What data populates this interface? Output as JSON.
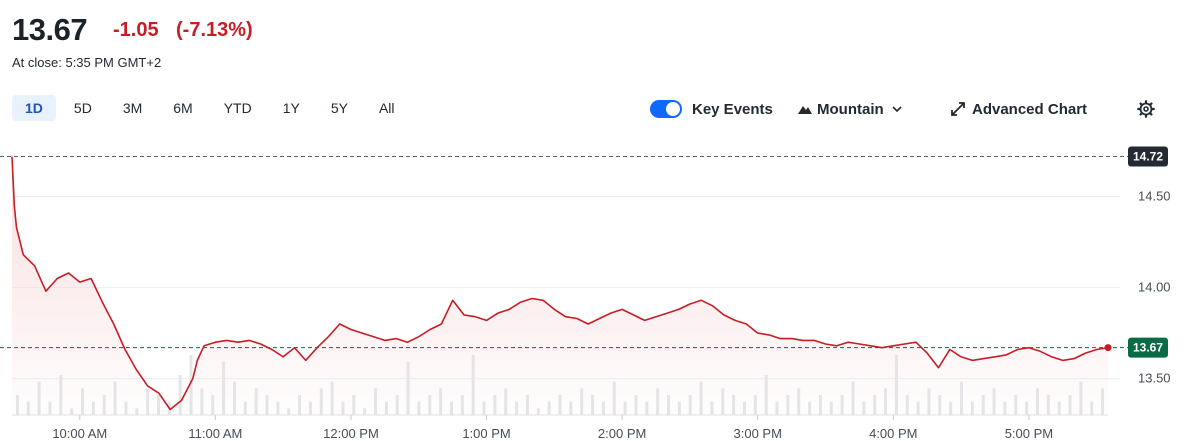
{
  "quote": {
    "price": "13.67",
    "change": "-1.05",
    "change_pct": "(-7.13%)",
    "close_label": "At close: 5:35 PM GMT+2"
  },
  "ranges": [
    "1D",
    "5D",
    "3M",
    "6M",
    "YTD",
    "1Y",
    "5Y",
    "All"
  ],
  "active_range": "1D",
  "toolbar": {
    "key_events_label": "Key Events",
    "key_events_on": true,
    "chart_type_label": "Mountain",
    "advanced_label": "Advanced Chart",
    "icons": [
      "mountain-icon",
      "chevron-down-icon",
      "expand-icon",
      "gear-icon"
    ]
  },
  "colors": {
    "line": "#c81d25",
    "fill": "#f9d9db",
    "prev_close_tag": "#232a31",
    "last_price_tag": "#0b6b47",
    "toggle": "#0f69ff"
  },
  "chart_data": {
    "type": "area",
    "title": "",
    "xlabel": "",
    "ylabel": "",
    "x_ticks": [
      "10:00 AM",
      "11:00 AM",
      "12:00 PM",
      "1:00 PM",
      "2:00 PM",
      "3:00 PM",
      "4:00 PM",
      "5:00 PM"
    ],
    "y_ticks": [
      "14.50",
      "14.00",
      "13.50"
    ],
    "ylim": [
      13.3,
      14.8
    ],
    "xlim": [
      "9:30 AM",
      "5:35 PM"
    ],
    "grid": true,
    "reference_lines": [
      {
        "label": "14.72",
        "value": 14.72,
        "style": "dashed"
      },
      {
        "label": "13.67",
        "value": 13.67,
        "style": "dashed"
      }
    ],
    "series": [
      {
        "x": [
          "9:30 AM",
          "9:31 AM",
          "9:32 AM",
          "9:35 AM",
          "9:40 AM",
          "9:45 AM",
          "9:50 AM",
          "9:55 AM",
          "10:00 AM",
          "10:05 AM",
          "10:10 AM",
          "10:15 AM",
          "10:20 AM",
          "10:25 AM",
          "10:30 AM",
          "10:35 AM",
          "10:40 AM",
          "10:45 AM",
          "10:50 AM",
          "10:52 AM",
          "10:55 AM",
          "11:00 AM",
          "11:05 AM",
          "11:10 AM",
          "11:15 AM",
          "11:20 AM",
          "11:25 AM",
          "11:30 AM",
          "11:35 AM",
          "11:40 AM",
          "11:45 AM",
          "11:50 AM",
          "11:55 AM",
          "12:00 PM",
          "12:05 PM",
          "12:10 PM",
          "12:15 PM",
          "12:20 PM",
          "12:25 PM",
          "12:30 PM",
          "12:35 PM",
          "12:40 PM",
          "12:45 PM",
          "12:50 PM",
          "12:55 PM",
          "1:00 PM",
          "1:05 PM",
          "1:10 PM",
          "1:15 PM",
          "1:20 PM",
          "1:25 PM",
          "1:30 PM",
          "1:35 PM",
          "1:40 PM",
          "1:45 PM",
          "1:50 PM",
          "1:55 PM",
          "2:00 PM",
          "2:05 PM",
          "2:10 PM",
          "2:15 PM",
          "2:20 PM",
          "2:25 PM",
          "2:30 PM",
          "2:35 PM",
          "2:40 PM",
          "2:45 PM",
          "2:50 PM",
          "2:55 PM",
          "3:00 PM",
          "3:05 PM",
          "3:10 PM",
          "3:15 PM",
          "3:20 PM",
          "3:25 PM",
          "3:30 PM",
          "3:35 PM",
          "3:40 PM",
          "3:45 PM",
          "3:50 PM",
          "3:55 PM",
          "4:00 PM",
          "4:05 PM",
          "4:10 PM",
          "4:15 PM",
          "4:20 PM",
          "4:25 PM",
          "4:30 PM",
          "4:35 PM",
          "4:40 PM",
          "4:45 PM",
          "4:50 PM",
          "4:55 PM",
          "5:00 PM",
          "5:05 PM",
          "5:10 PM",
          "5:15 PM",
          "5:20 PM",
          "5:25 PM",
          "5:30 PM",
          "5:35 PM"
        ],
        "values": [
          14.72,
          14.45,
          14.33,
          14.18,
          14.12,
          13.98,
          14.05,
          14.08,
          14.03,
          14.05,
          13.92,
          13.8,
          13.66,
          13.55,
          13.46,
          13.42,
          13.33,
          13.38,
          13.5,
          13.6,
          13.68,
          13.7,
          13.71,
          13.7,
          13.71,
          13.69,
          13.66,
          13.62,
          13.67,
          13.6,
          13.67,
          13.73,
          13.8,
          13.77,
          13.75,
          13.73,
          13.71,
          13.72,
          13.7,
          13.73,
          13.77,
          13.8,
          13.93,
          13.85,
          13.84,
          13.82,
          13.86,
          13.88,
          13.92,
          13.94,
          13.93,
          13.88,
          13.84,
          13.83,
          13.8,
          13.83,
          13.86,
          13.88,
          13.85,
          13.82,
          13.84,
          13.86,
          13.88,
          13.91,
          13.93,
          13.9,
          13.85,
          13.82,
          13.8,
          13.75,
          13.74,
          13.72,
          13.72,
          13.71,
          13.71,
          13.69,
          13.68,
          13.7,
          13.69,
          13.68,
          13.67,
          13.68,
          13.69,
          13.7,
          13.64,
          13.56,
          13.66,
          13.62,
          13.6,
          13.61,
          13.62,
          13.63,
          13.66,
          13.67,
          13.65,
          13.62,
          13.6,
          13.61,
          13.64,
          13.66,
          13.67
        ]
      }
    ],
    "volume": [
      3,
      2,
      5,
      2,
      6,
      1,
      4,
      2,
      3,
      5,
      2,
      1,
      4,
      3,
      2,
      6,
      9,
      4,
      3,
      8,
      5,
      2,
      4,
      3,
      2,
      1,
      3,
      2,
      4,
      5,
      2,
      3,
      1,
      4,
      2,
      3,
      8,
      2,
      3,
      4,
      2,
      3,
      9,
      2,
      3,
      4,
      2,
      3,
      1,
      2,
      3,
      2,
      4,
      3,
      2,
      5,
      2,
      3,
      2,
      4,
      3,
      2,
      3,
      5,
      2,
      4,
      3,
      2,
      3,
      6,
      2,
      3,
      4,
      2,
      3,
      2,
      3,
      5,
      2,
      3,
      4,
      9,
      3,
      2,
      4,
      3,
      2,
      5,
      2,
      3,
      4,
      2,
      3,
      2,
      4,
      3,
      2,
      3,
      5,
      2,
      4
    ]
  }
}
